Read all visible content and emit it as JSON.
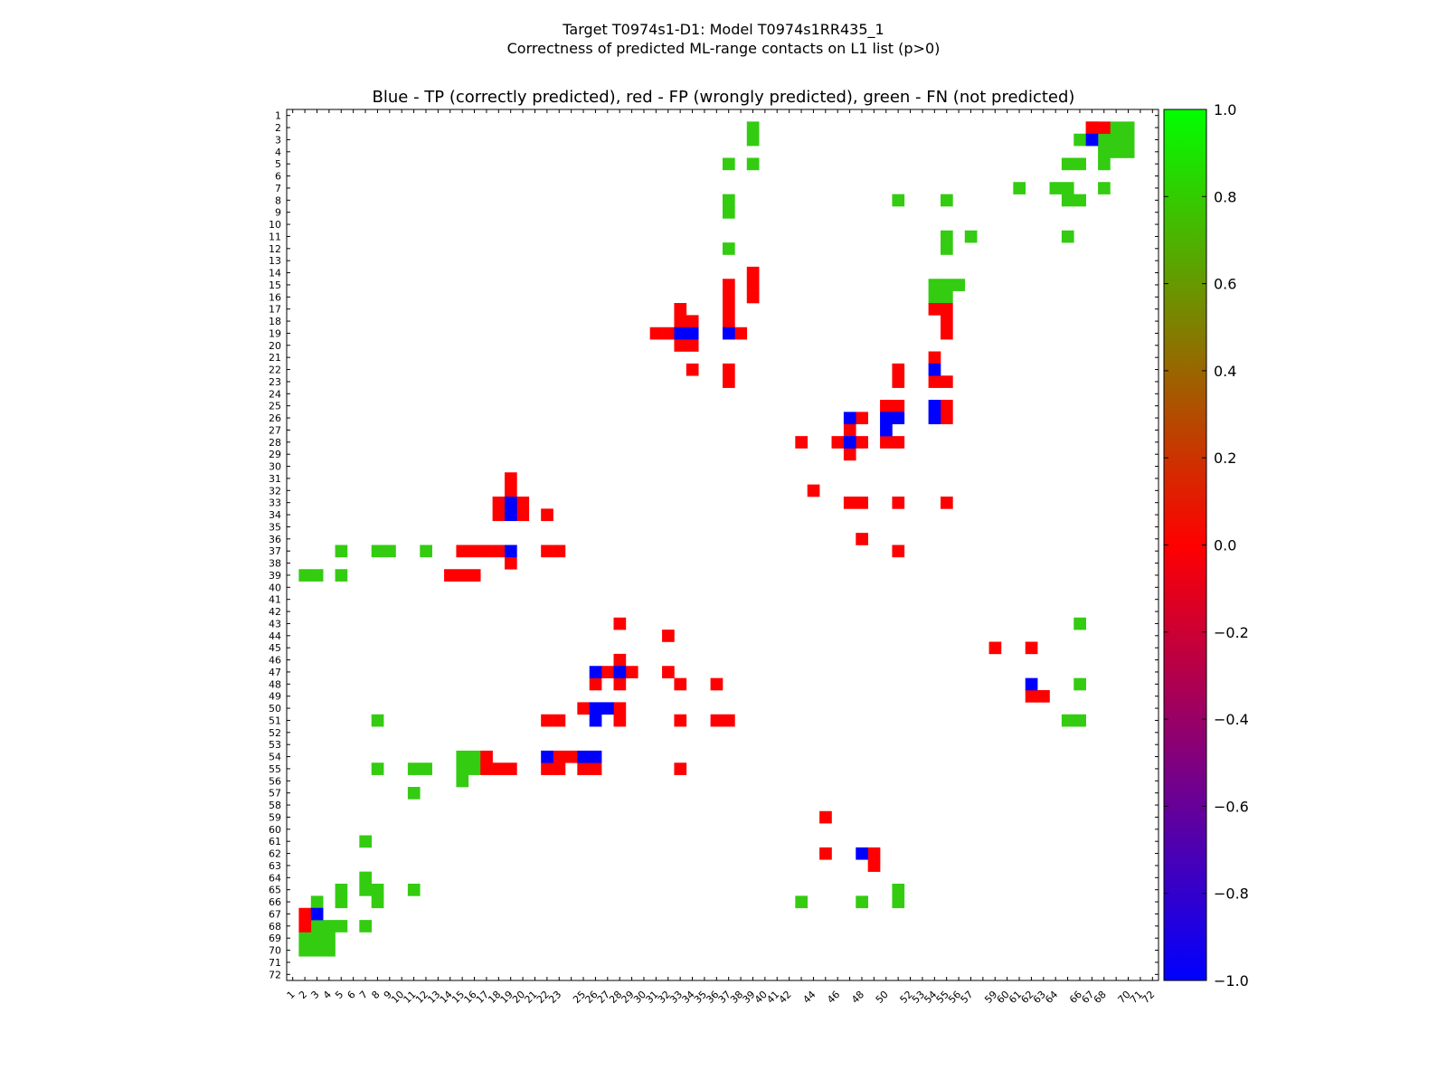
{
  "header": {
    "title_line1": "Target T0974s1-D1: Model T0974s1RR435_1",
    "title_line2": "Correctness of predicted ML-range contacts on L1 list (p>0)"
  },
  "chart_data": {
    "type": "heatmap",
    "title": "Blue - TP (correctly predicted), red - FP (wrongly predicted), green - FN (not predicted)",
    "xlabel": "",
    "ylabel": "",
    "x_range": [
      1,
      72
    ],
    "y_range": [
      1,
      72
    ],
    "x_tick_labels": [
      1,
      2,
      3,
      4,
      5,
      6,
      7,
      8,
      9,
      10,
      11,
      12,
      13,
      14,
      15,
      16,
      17,
      18,
      19,
      20,
      21,
      22,
      23,
      24,
      25,
      26,
      27,
      28,
      29,
      30,
      31,
      32,
      33,
      34,
      35,
      36,
      37,
      38,
      39,
      40,
      41,
      42,
      43,
      44,
      45,
      46,
      47,
      48,
      49,
      50,
      51,
      52,
      53,
      54,
      55,
      56,
      57,
      58,
      59,
      60,
      61,
      62,
      63,
      64,
      65,
      66,
      67,
      68,
      69,
      70,
      71,
      72
    ],
    "x_tick_labels_shown": [
      1,
      2,
      3,
      4,
      5,
      6,
      7,
      8,
      9,
      10,
      11,
      12,
      13,
      14,
      15,
      16,
      17,
      18,
      19,
      20,
      21,
      22,
      23,
      25,
      26,
      27,
      28,
      29,
      30,
      31,
      32,
      33,
      34,
      35,
      36,
      37,
      38,
      39,
      40,
      41,
      42,
      44,
      46,
      48,
      50,
      52,
      53,
      54,
      55,
      56,
      57,
      59,
      60,
      61,
      62,
      63,
      64,
      66,
      67,
      68,
      70,
      71,
      72
    ],
    "y_tick_labels": [
      1,
      2,
      3,
      4,
      5,
      6,
      7,
      8,
      9,
      10,
      11,
      12,
      13,
      14,
      15,
      16,
      17,
      18,
      19,
      20,
      21,
      22,
      23,
      24,
      25,
      26,
      27,
      28,
      29,
      30,
      31,
      32,
      33,
      34,
      35,
      36,
      37,
      38,
      39,
      40,
      41,
      42,
      43,
      44,
      45,
      46,
      47,
      48,
      49,
      50,
      51,
      52,
      53,
      54,
      55,
      56,
      57,
      58,
      59,
      60,
      61,
      62,
      63,
      64,
      65,
      66,
      67,
      68,
      69,
      70,
      71,
      72
    ],
    "y_tick_labels_shown": [
      1,
      2,
      3,
      4,
      5,
      6,
      7,
      8,
      9,
      10,
      11,
      12,
      13,
      14,
      15,
      16,
      17,
      18,
      19,
      20,
      21,
      22,
      23,
      24,
      25,
      26,
      27,
      28,
      29,
      30,
      31,
      32,
      33,
      34,
      35,
      36,
      37,
      38,
      39,
      40,
      41,
      42,
      43,
      44,
      45,
      46,
      47,
      48,
      49,
      50,
      51,
      52,
      53,
      54,
      55,
      56,
      57,
      58,
      59,
      60,
      61,
      62,
      63,
      64,
      65,
      66,
      67,
      68,
      69,
      70,
      71,
      72
    ],
    "legend": {
      "TP": "blue (-1.0)",
      "FP": "red (0.0)",
      "FN": "green (0.8)"
    },
    "colorbar": {
      "range": [
        -1.0,
        1.0
      ],
      "ticks": [
        "1.0",
        "0.8",
        "0.6",
        "0.4",
        "0.2",
        "0.0",
        "−0.2",
        "−0.4",
        "−0.6",
        "−0.8",
        "−1.0"
      ],
      "tick_values": [
        1.0,
        0.8,
        0.6,
        0.4,
        0.2,
        0.0,
        -0.2,
        -0.4,
        -0.6,
        -0.8,
        -1.0
      ]
    },
    "colors": {
      "TP": "#0000ff",
      "FP": "#ff0000",
      "FN": "#33cc11",
      "cbar_top": "#00ff00",
      "cbar_mid": "#ff0000",
      "cbar_bottom": "#0000ff"
    },
    "cells": {
      "TP": [
        [
          19,
          33
        ],
        [
          19,
          34
        ],
        [
          19,
          37
        ],
        [
          3,
          67
        ],
        [
          26,
          47
        ],
        [
          28,
          47
        ],
        [
          26,
          50
        ],
        [
          26,
          51
        ],
        [
          27,
          50
        ],
        [
          22,
          54
        ],
        [
          25,
          54
        ],
        [
          26,
          54
        ],
        [
          33,
          19
        ],
        [
          34,
          19
        ],
        [
          37,
          19
        ],
        [
          67,
          3
        ],
        [
          47,
          26
        ],
        [
          47,
          28
        ],
        [
          50,
          26
        ],
        [
          51,
          26
        ],
        [
          50,
          27
        ],
        [
          54,
          22
        ],
        [
          54,
          25
        ],
        [
          54,
          26
        ],
        [
          48,
          62
        ],
        [
          62,
          48
        ]
      ],
      "FP": [
        [
          2,
          67
        ],
        [
          2,
          68
        ],
        [
          14,
          39
        ],
        [
          15,
          39
        ],
        [
          15,
          37
        ],
        [
          16,
          37
        ],
        [
          16,
          39
        ],
        [
          17,
          37
        ],
        [
          17,
          33
        ],
        [
          18,
          37
        ],
        [
          18,
          33
        ],
        [
          18,
          34
        ],
        [
          19,
          31
        ],
        [
          19,
          32
        ],
        [
          19,
          38
        ],
        [
          20,
          33
        ],
        [
          20,
          34
        ],
        [
          22,
          34
        ],
        [
          22,
          37
        ],
        [
          23,
          37
        ],
        [
          17,
          54
        ],
        [
          17,
          55
        ],
        [
          18,
          55
        ],
        [
          19,
          55
        ],
        [
          21,
          54
        ],
        [
          22,
          51
        ],
        [
          23,
          51
        ],
        [
          23,
          54
        ],
        [
          23,
          55
        ],
        [
          25,
          50
        ],
        [
          25,
          51
        ],
        [
          25,
          55
        ],
        [
          26,
          48
        ],
        [
          26,
          55
        ],
        [
          27,
          47
        ],
        [
          28,
          43
        ],
        [
          28,
          46
        ],
        [
          28,
          48
        ],
        [
          28,
          50
        ],
        [
          28,
          51
        ],
        [
          29,
          47
        ],
        [
          32,
          44
        ],
        [
          33,
          47
        ],
        [
          33,
          48
        ],
        [
          33,
          51
        ],
        [
          33,
          55
        ],
        [
          36,
          48
        ],
        [
          37,
          51
        ],
        [
          2,
          67
        ],
        [
          31,
          19
        ],
        [
          32,
          19
        ],
        [
          33,
          18
        ],
        [
          33,
          20
        ],
        [
          34,
          18
        ],
        [
          34,
          20
        ],
        [
          34,
          22
        ],
        [
          37,
          15
        ],
        [
          37,
          16
        ],
        [
          37,
          17
        ],
        [
          37,
          18
        ],
        [
          37,
          22
        ],
        [
          37,
          23
        ],
        [
          38,
          19
        ],
        [
          39,
          14
        ],
        [
          39,
          15
        ],
        [
          39,
          16
        ],
        [
          43,
          28
        ],
        [
          44,
          32
        ],
        [
          45,
          59
        ],
        [
          45,
          62
        ],
        [
          46,
          28
        ],
        [
          47,
          27
        ],
        [
          47,
          29
        ],
        [
          47,
          32
        ],
        [
          48,
          26
        ],
        [
          48,
          28
        ],
        [
          48,
          33
        ],
        [
          48,
          36
        ],
        [
          49,
          62
        ],
        [
          49,
          63
        ],
        [
          50,
          25
        ],
        [
          50,
          28
        ],
        [
          51,
          22
        ],
        [
          51,
          23
        ],
        [
          51,
          28
        ],
        [
          51,
          33
        ],
        [
          51,
          36
        ],
        [
          51,
          37
        ],
        [
          54,
          17
        ],
        [
          54,
          23
        ],
        [
          54,
          24
        ],
        [
          55,
          17
        ],
        [
          55,
          18
        ],
        [
          55,
          19
        ],
        [
          55,
          22
        ],
        [
          55,
          23
        ],
        [
          55,
          25
        ],
        [
          55,
          26
        ],
        [
          55,
          33
        ],
        [
          59,
          45
        ],
        [
          62,
          45
        ],
        [
          62,
          49
        ],
        [
          63,
          49
        ],
        [
          67,
          2
        ],
        [
          68,
          2
        ]
      ],
      "FN": [
        [
          2,
          39
        ],
        [
          3,
          39
        ],
        [
          2,
          69
        ],
        [
          2,
          70
        ],
        [
          3,
          66
        ],
        [
          3,
          68
        ],
        [
          3,
          69
        ],
        [
          3,
          70
        ],
        [
          4,
          68
        ],
        [
          4,
          69
        ],
        [
          4,
          70
        ],
        [
          5,
          37
        ],
        [
          5,
          39
        ],
        [
          5,
          65
        ],
        [
          5,
          66
        ],
        [
          5,
          68
        ],
        [
          7,
          61
        ],
        [
          7,
          64
        ],
        [
          7,
          65
        ],
        [
          7,
          68
        ],
        [
          8,
          37
        ],
        [
          8,
          51
        ],
        [
          8,
          55
        ],
        [
          8,
          65
        ],
        [
          8,
          66
        ],
        [
          9,
          37
        ],
        [
          11,
          55
        ],
        [
          11,
          57
        ],
        [
          11,
          65
        ],
        [
          12,
          37
        ],
        [
          12,
          55
        ],
        [
          15,
          54
        ],
        [
          15,
          55
        ],
        [
          15,
          56
        ],
        [
          16,
          54
        ],
        [
          16,
          55
        ],
        [
          37,
          5
        ],
        [
          37,
          8
        ],
        [
          37,
          9
        ],
        [
          37,
          12
        ],
        [
          39,
          2
        ],
        [
          39,
          3
        ],
        [
          39,
          5
        ],
        [
          43,
          66
        ],
        [
          48,
          66
        ],
        [
          51,
          8
        ],
        [
          51,
          65
        ],
        [
          51,
          66
        ],
        [
          54,
          15
        ],
        [
          54,
          16
        ],
        [
          55,
          8
        ],
        [
          55,
          11
        ],
        [
          55,
          12
        ],
        [
          55,
          15
        ],
        [
          55,
          16
        ],
        [
          56,
          15
        ],
        [
          57,
          11
        ],
        [
          61,
          7
        ],
        [
          64,
          7
        ],
        [
          65,
          5
        ],
        [
          65,
          7
        ],
        [
          65,
          8
        ],
        [
          65,
          11
        ],
        [
          65,
          51
        ],
        [
          66,
          3
        ],
        [
          66,
          5
        ],
        [
          66,
          8
        ],
        [
          66,
          43
        ],
        [
          66,
          48
        ],
        [
          66,
          51
        ],
        [
          68,
          3
        ],
        [
          68,
          4
        ],
        [
          68,
          5
        ],
        [
          68,
          7
        ],
        [
          69,
          2
        ],
        [
          69,
          3
        ],
        [
          69,
          4
        ],
        [
          70,
          2
        ],
        [
          70,
          3
        ],
        [
          70,
          4
        ]
      ]
    }
  }
}
